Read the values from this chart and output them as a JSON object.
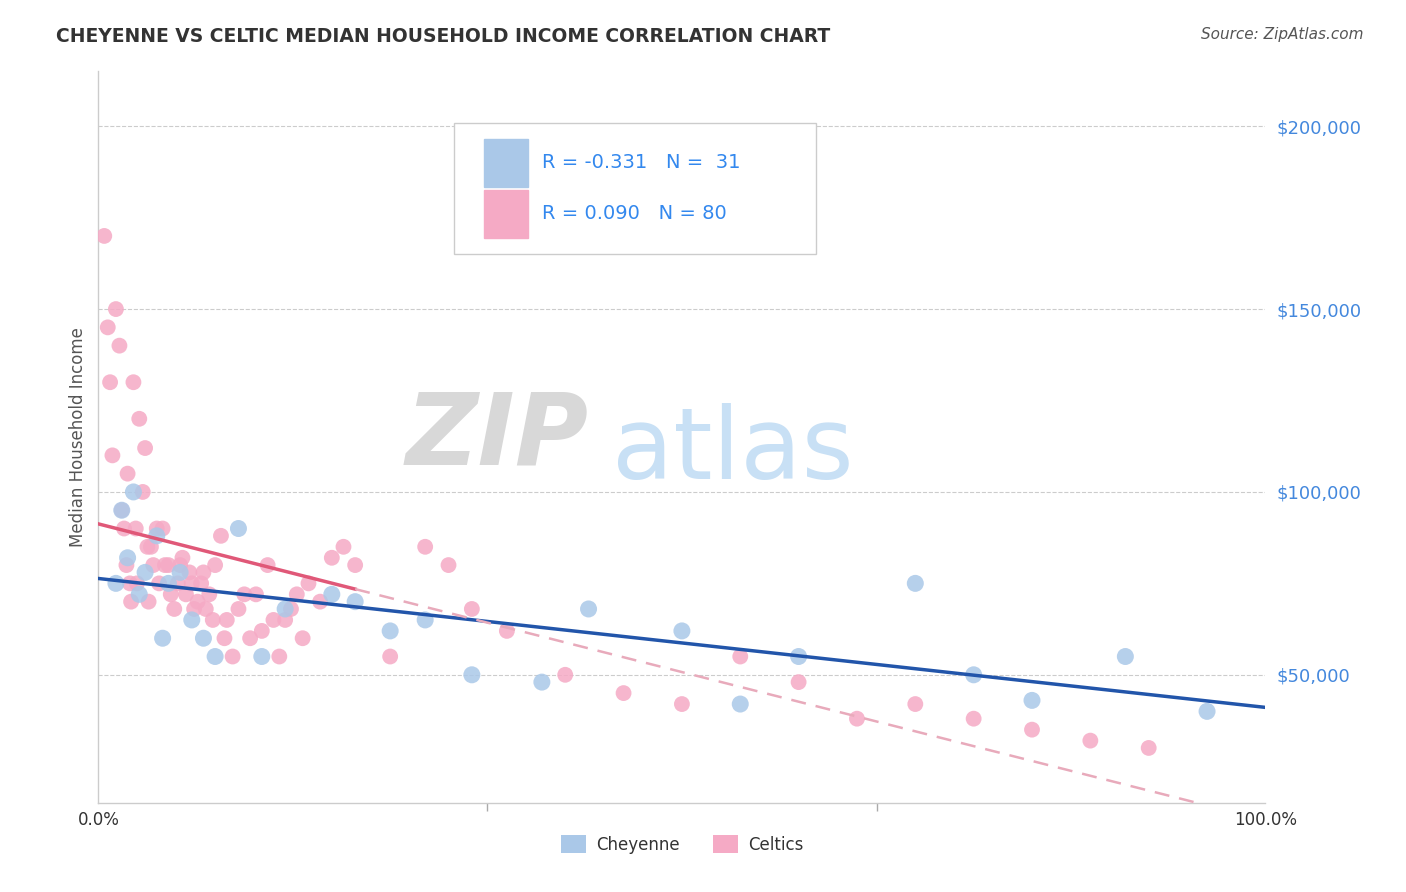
{
  "title": "CHEYENNE VS CELTIC MEDIAN HOUSEHOLD INCOME CORRELATION CHART",
  "source": "Source: ZipAtlas.com",
  "ylabel": "Median Household Income",
  "xlim": [
    0.0,
    1.0
  ],
  "ylim": [
    15000,
    215000
  ],
  "yticks": [
    50000,
    100000,
    150000,
    200000
  ],
  "ytick_labels": [
    "$50,000",
    "$100,000",
    "$150,000",
    "$200,000"
  ],
  "xtick_labels": [
    "0.0%",
    "100.0%"
  ],
  "background_color": "#ffffff",
  "grid_color": "#cccccc",
  "cheyenne_color": "#aac8e8",
  "celtics_color": "#f5aac5",
  "cheyenne_line_color": "#2255aa",
  "celtics_line_color": "#e05878",
  "celtics_dashed_color": "#e8aabb",
  "r_cheyenne": -0.331,
  "n_cheyenne": 31,
  "r_celtics": 0.09,
  "n_celtics": 80,
  "cheyenne_x": [
    0.015,
    0.02,
    0.025,
    0.03,
    0.035,
    0.04,
    0.05,
    0.055,
    0.06,
    0.07,
    0.08,
    0.09,
    0.1,
    0.12,
    0.14,
    0.16,
    0.2,
    0.22,
    0.25,
    0.28,
    0.32,
    0.38,
    0.42,
    0.5,
    0.55,
    0.6,
    0.7,
    0.75,
    0.8,
    0.88,
    0.95
  ],
  "cheyenne_y": [
    75000,
    95000,
    82000,
    100000,
    72000,
    78000,
    88000,
    60000,
    75000,
    78000,
    65000,
    60000,
    55000,
    90000,
    55000,
    68000,
    72000,
    70000,
    62000,
    65000,
    50000,
    48000,
    68000,
    62000,
    42000,
    55000,
    75000,
    50000,
    43000,
    55000,
    40000
  ],
  "celtics_x": [
    0.005,
    0.008,
    0.01,
    0.012,
    0.015,
    0.018,
    0.02,
    0.022,
    0.024,
    0.025,
    0.027,
    0.028,
    0.03,
    0.032,
    0.033,
    0.035,
    0.038,
    0.04,
    0.042,
    0.043,
    0.045,
    0.047,
    0.05,
    0.052,
    0.055,
    0.057,
    0.06,
    0.062,
    0.065,
    0.068,
    0.07,
    0.072,
    0.075,
    0.078,
    0.08,
    0.082,
    0.085,
    0.088,
    0.09,
    0.092,
    0.095,
    0.098,
    0.1,
    0.105,
    0.108,
    0.11,
    0.115,
    0.12,
    0.125,
    0.13,
    0.135,
    0.14,
    0.145,
    0.15,
    0.155,
    0.16,
    0.165,
    0.17,
    0.175,
    0.18,
    0.19,
    0.2,
    0.21,
    0.22,
    0.25,
    0.28,
    0.3,
    0.32,
    0.35,
    0.4,
    0.45,
    0.5,
    0.55,
    0.6,
    0.65,
    0.7,
    0.75,
    0.8,
    0.85,
    0.9
  ],
  "celtics_y": [
    170000,
    145000,
    130000,
    110000,
    150000,
    140000,
    95000,
    90000,
    80000,
    105000,
    75000,
    70000,
    130000,
    90000,
    75000,
    120000,
    100000,
    112000,
    85000,
    70000,
    85000,
    80000,
    90000,
    75000,
    90000,
    80000,
    80000,
    72000,
    68000,
    75000,
    80000,
    82000,
    72000,
    78000,
    75000,
    68000,
    70000,
    75000,
    78000,
    68000,
    72000,
    65000,
    80000,
    88000,
    60000,
    65000,
    55000,
    68000,
    72000,
    60000,
    72000,
    62000,
    80000,
    65000,
    55000,
    65000,
    68000,
    72000,
    60000,
    75000,
    70000,
    82000,
    85000,
    80000,
    55000,
    85000,
    80000,
    68000,
    62000,
    50000,
    45000,
    42000,
    55000,
    48000,
    38000,
    42000,
    38000,
    35000,
    32000,
    30000
  ]
}
